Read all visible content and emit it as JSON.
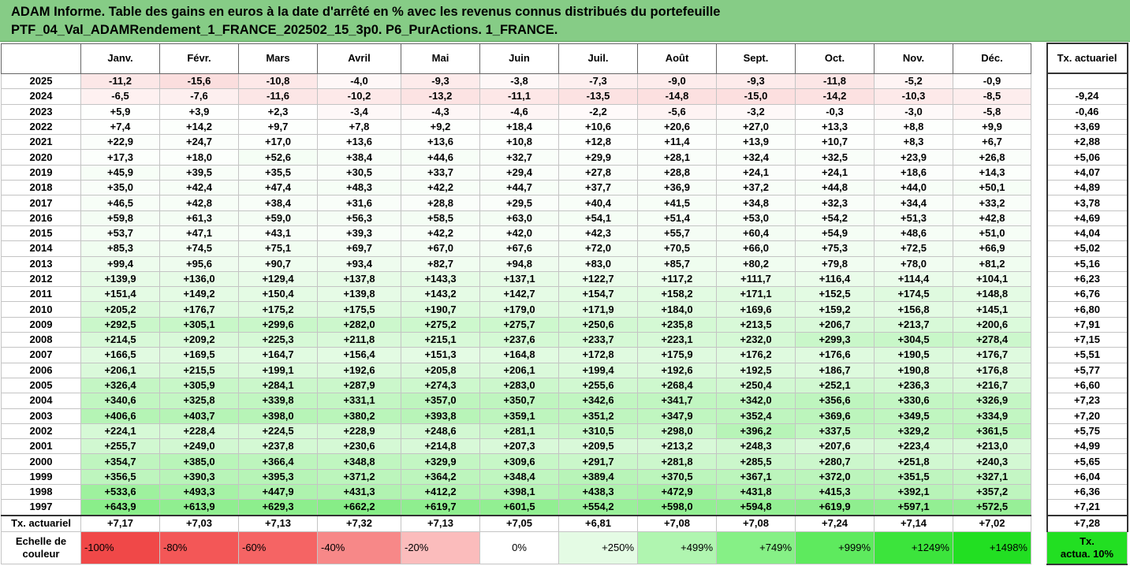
{
  "title": {
    "line1": "ADAM Informe. Table des gains en euros à la date d'arrêté en % avec les revenus connus distribués du portefeuille",
    "line2": "PTF_04_Val_ADAMRendement_1_FRANCE_202502_15_3p0. P6_PurActions. 1_FRANCE."
  },
  "table": {
    "months": [
      "Janv.",
      "Févr.",
      "Mars",
      "Avril",
      "Mai",
      "Juin",
      "Juil.",
      "Août",
      "Sept.",
      "Oct.",
      "Nov.",
      "Déc."
    ],
    "annual_header": "Tx. actuariel",
    "rows": [
      {
        "year": "2025",
        "values": [
          "-11,2",
          "-15,6",
          "-10,8",
          "-4,0",
          "-9,3",
          "-3,8",
          "-7,3",
          "-9,0",
          "-9,3",
          "-11,8",
          "-5,2",
          "-0,9"
        ],
        "annual": ""
      },
      {
        "year": "2024",
        "values": [
          "-6,5",
          "-7,6",
          "-11,6",
          "-10,2",
          "-13,2",
          "-11,1",
          "-13,5",
          "-14,8",
          "-15,0",
          "-14,2",
          "-10,3",
          "-8,5"
        ],
        "annual": "-9,24"
      },
      {
        "year": "2023",
        "values": [
          "+5,9",
          "+3,9",
          "+2,3",
          "-3,4",
          "-4,3",
          "-4,6",
          "-2,2",
          "-5,6",
          "-3,2",
          "-0,3",
          "-3,0",
          "-5,8"
        ],
        "annual": "-0,46"
      },
      {
        "year": "2022",
        "values": [
          "+7,4",
          "+14,2",
          "+9,7",
          "+7,8",
          "+9,2",
          "+18,4",
          "+10,6",
          "+20,6",
          "+27,0",
          "+13,3",
          "+8,8",
          "+9,9"
        ],
        "annual": "+3,69"
      },
      {
        "year": "2021",
        "values": [
          "+22,9",
          "+24,7",
          "+17,0",
          "+13,6",
          "+13,6",
          "+10,8",
          "+12,8",
          "+11,4",
          "+13,9",
          "+10,7",
          "+8,3",
          "+6,7"
        ],
        "annual": "+2,88"
      },
      {
        "year": "2020",
        "values": [
          "+17,3",
          "+18,0",
          "+52,6",
          "+38,4",
          "+44,6",
          "+32,7",
          "+29,9",
          "+28,1",
          "+32,4",
          "+32,5",
          "+23,9",
          "+26,8"
        ],
        "annual": "+5,06"
      },
      {
        "year": "2019",
        "values": [
          "+45,9",
          "+39,5",
          "+35,5",
          "+30,5",
          "+33,7",
          "+29,4",
          "+27,8",
          "+28,8",
          "+24,1",
          "+24,1",
          "+18,6",
          "+14,3"
        ],
        "annual": "+4,07"
      },
      {
        "year": "2018",
        "values": [
          "+35,0",
          "+42,4",
          "+47,4",
          "+48,3",
          "+42,2",
          "+44,7",
          "+37,7",
          "+36,9",
          "+37,2",
          "+44,8",
          "+44,0",
          "+50,1"
        ],
        "annual": "+4,89"
      },
      {
        "year": "2017",
        "values": [
          "+46,5",
          "+42,8",
          "+38,4",
          "+31,6",
          "+28,8",
          "+29,5",
          "+40,4",
          "+41,5",
          "+34,8",
          "+32,3",
          "+34,4",
          "+33,2"
        ],
        "annual": "+3,78"
      },
      {
        "year": "2016",
        "values": [
          "+59,8",
          "+61,3",
          "+59,0",
          "+56,3",
          "+58,5",
          "+63,0",
          "+54,1",
          "+51,4",
          "+53,0",
          "+54,2",
          "+51,3",
          "+42,8"
        ],
        "annual": "+4,69"
      },
      {
        "year": "2015",
        "values": [
          "+53,7",
          "+47,1",
          "+43,1",
          "+39,3",
          "+42,2",
          "+42,0",
          "+42,3",
          "+55,7",
          "+60,4",
          "+54,9",
          "+48,6",
          "+51,0"
        ],
        "annual": "+4,04"
      },
      {
        "year": "2014",
        "values": [
          "+85,3",
          "+74,5",
          "+75,1",
          "+69,7",
          "+67,0",
          "+67,6",
          "+72,0",
          "+70,5",
          "+66,0",
          "+75,3",
          "+72,5",
          "+66,9"
        ],
        "annual": "+5,02"
      },
      {
        "year": "2013",
        "values": [
          "+99,4",
          "+95,6",
          "+90,7",
          "+93,4",
          "+82,7",
          "+94,8",
          "+83,0",
          "+85,7",
          "+80,2",
          "+79,8",
          "+78,0",
          "+81,2"
        ],
        "annual": "+5,16"
      },
      {
        "year": "2012",
        "values": [
          "+139,9",
          "+136,0",
          "+129,4",
          "+137,8",
          "+143,3",
          "+137,1",
          "+122,7",
          "+117,2",
          "+111,7",
          "+116,4",
          "+114,4",
          "+104,1"
        ],
        "annual": "+6,23"
      },
      {
        "year": "2011",
        "values": [
          "+151,4",
          "+149,2",
          "+150,4",
          "+139,8",
          "+143,2",
          "+142,7",
          "+154,7",
          "+158,2",
          "+171,1",
          "+152,5",
          "+174,5",
          "+148,8"
        ],
        "annual": "+6,76"
      },
      {
        "year": "2010",
        "values": [
          "+205,2",
          "+176,7",
          "+175,2",
          "+175,5",
          "+190,7",
          "+179,0",
          "+171,9",
          "+184,0",
          "+169,6",
          "+159,2",
          "+156,8",
          "+145,1"
        ],
        "annual": "+6,80"
      },
      {
        "year": "2009",
        "values": [
          "+292,5",
          "+305,1",
          "+299,6",
          "+282,0",
          "+275,2",
          "+275,7",
          "+250,6",
          "+235,8",
          "+213,5",
          "+206,7",
          "+213,7",
          "+200,6"
        ],
        "annual": "+7,91"
      },
      {
        "year": "2008",
        "values": [
          "+214,5",
          "+209,2",
          "+225,3",
          "+211,8",
          "+215,1",
          "+237,6",
          "+233,7",
          "+223,1",
          "+232,0",
          "+299,3",
          "+304,5",
          "+278,4"
        ],
        "annual": "+7,15"
      },
      {
        "year": "2007",
        "values": [
          "+166,5",
          "+169,5",
          "+164,7",
          "+156,4",
          "+151,3",
          "+164,8",
          "+172,8",
          "+175,9",
          "+176,2",
          "+176,6",
          "+190,5",
          "+176,7"
        ],
        "annual": "+5,51"
      },
      {
        "year": "2006",
        "values": [
          "+206,1",
          "+215,5",
          "+199,1",
          "+192,6",
          "+205,8",
          "+206,1",
          "+199,4",
          "+192,6",
          "+192,5",
          "+186,7",
          "+190,8",
          "+176,8"
        ],
        "annual": "+5,77"
      },
      {
        "year": "2005",
        "values": [
          "+326,4",
          "+305,9",
          "+284,1",
          "+287,9",
          "+274,3",
          "+283,0",
          "+255,6",
          "+268,4",
          "+250,4",
          "+252,1",
          "+236,3",
          "+216,7"
        ],
        "annual": "+6,60"
      },
      {
        "year": "2004",
        "values": [
          "+340,6",
          "+325,8",
          "+339,8",
          "+331,1",
          "+357,0",
          "+350,7",
          "+342,6",
          "+341,7",
          "+342,0",
          "+356,6",
          "+330,6",
          "+326,9"
        ],
        "annual": "+7,23"
      },
      {
        "year": "2003",
        "values": [
          "+406,6",
          "+403,7",
          "+398,0",
          "+380,2",
          "+393,8",
          "+359,1",
          "+351,2",
          "+347,9",
          "+352,4",
          "+369,6",
          "+349,5",
          "+334,9"
        ],
        "annual": "+7,20"
      },
      {
        "year": "2002",
        "values": [
          "+224,1",
          "+228,4",
          "+224,5",
          "+228,9",
          "+248,6",
          "+281,1",
          "+310,5",
          "+298,0",
          "+396,2",
          "+337,5",
          "+329,2",
          "+361,5"
        ],
        "annual": "+5,75"
      },
      {
        "year": "2001",
        "values": [
          "+255,7",
          "+249,0",
          "+237,8",
          "+230,6",
          "+214,8",
          "+207,3",
          "+209,5",
          "+213,2",
          "+248,3",
          "+207,6",
          "+223,4",
          "+213,0"
        ],
        "annual": "+4,99"
      },
      {
        "year": "2000",
        "values": [
          "+354,7",
          "+385,0",
          "+366,4",
          "+348,8",
          "+329,9",
          "+309,6",
          "+291,7",
          "+281,8",
          "+285,5",
          "+280,7",
          "+251,8",
          "+240,3"
        ],
        "annual": "+5,65"
      },
      {
        "year": "1999",
        "values": [
          "+356,5",
          "+390,3",
          "+395,3",
          "+371,2",
          "+364,2",
          "+348,4",
          "+389,4",
          "+370,5",
          "+367,1",
          "+372,0",
          "+351,5",
          "+327,1"
        ],
        "annual": "+6,04"
      },
      {
        "year": "1998",
        "values": [
          "+533,6",
          "+493,3",
          "+447,9",
          "+431,3",
          "+412,2",
          "+398,1",
          "+438,3",
          "+472,9",
          "+431,8",
          "+415,3",
          "+392,1",
          "+357,2"
        ],
        "annual": "+6,36"
      },
      {
        "year": "1997",
        "values": [
          "+643,9",
          "+613,9",
          "+629,3",
          "+662,2",
          "+619,7",
          "+601,5",
          "+554,2",
          "+598,0",
          "+594,8",
          "+619,9",
          "+597,1",
          "+572,5"
        ],
        "annual": "+7,21"
      }
    ],
    "tx_row": {
      "label": "Tx. actuariel",
      "values": [
        "+7,17",
        "+7,03",
        "+7,13",
        "+7,32",
        "+7,13",
        "+7,05",
        "+6,81",
        "+7,08",
        "+7,08",
        "+7,24",
        "+7,14",
        "+7,02"
      ],
      "annual": "+7,28"
    }
  },
  "legend": {
    "label_line1": "Echelle de",
    "label_line2": "couleur",
    "items": [
      {
        "text": "-100%",
        "color": "#f04848",
        "align": "left"
      },
      {
        "text": "-80%",
        "color": "#f35757",
        "align": "left"
      },
      {
        "text": "-60%",
        "color": "#f56464",
        "align": "left"
      },
      {
        "text": "-40%",
        "color": "#f78888",
        "align": "left"
      },
      {
        "text": "-20%",
        "color": "#fbbcbc",
        "align": "left"
      },
      {
        "text": "0%",
        "color": "#ffffff",
        "align": "center"
      },
      {
        "text": "+250%",
        "color": "#e4fbe4",
        "align": "right"
      },
      {
        "text": "+499%",
        "color": "#b0f5b0",
        "align": "right"
      },
      {
        "text": "+749%",
        "color": "#86f086",
        "align": "right"
      },
      {
        "text": "+999%",
        "color": "#5eea5e",
        "align": "right"
      },
      {
        "text": "+1249%",
        "color": "#3ce43c",
        "align": "right"
      },
      {
        "text": "+1498%",
        "color": "#22df22",
        "align": "right"
      }
    ],
    "annual_line1": "Tx.",
    "annual_line2": "actua. 10%",
    "annual_color": "#22df22"
  },
  "colors": {
    "header_green": "#86cc86",
    "neg_full": "#f04848",
    "pos_full": "#22df22"
  }
}
